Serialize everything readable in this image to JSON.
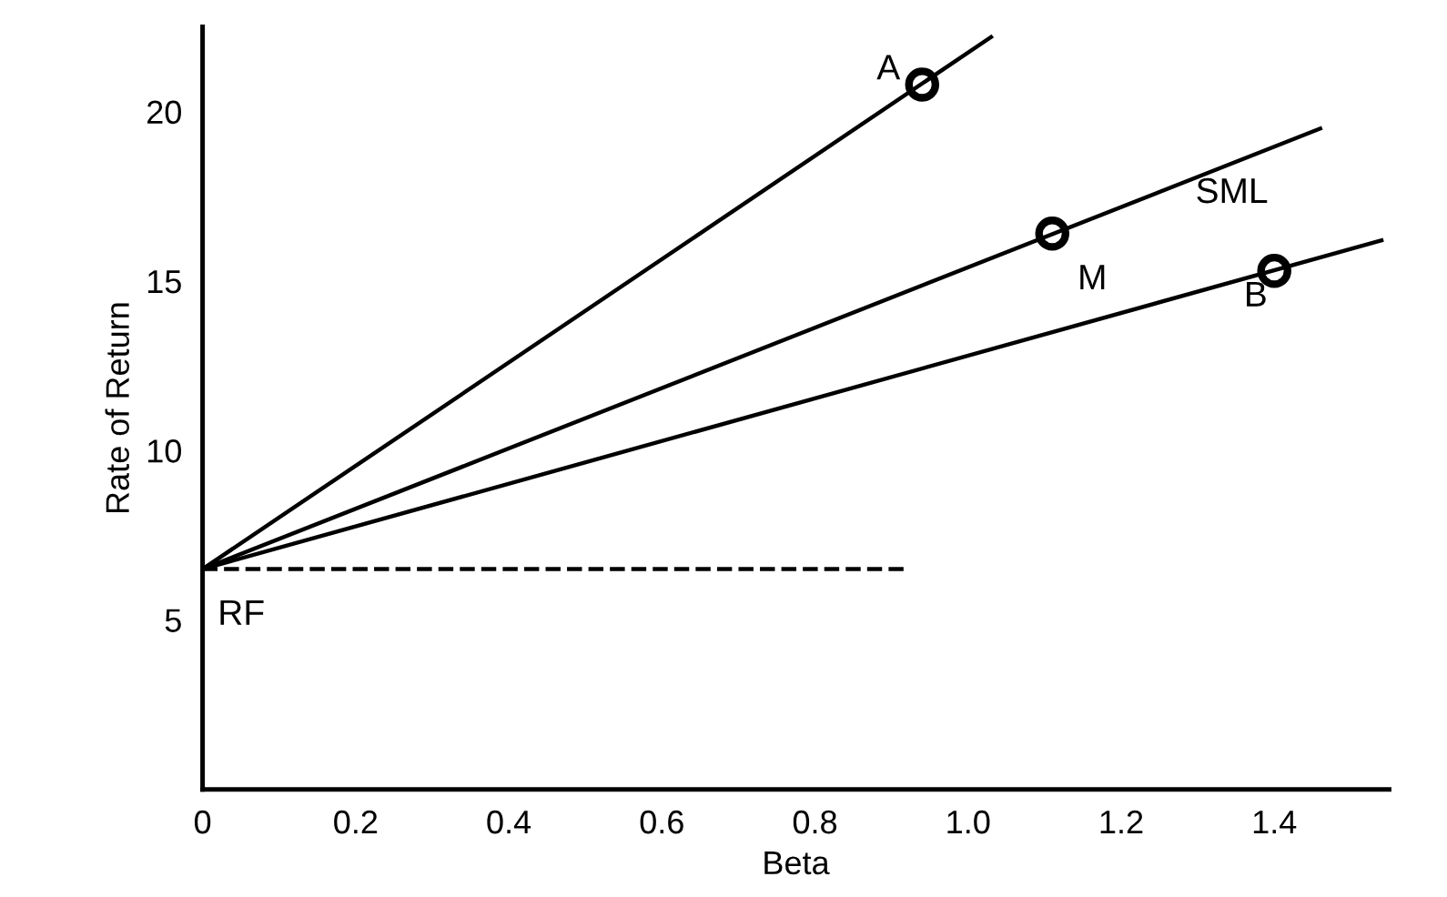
{
  "chart_data": {
    "type": "line",
    "xlabel": "Beta",
    "ylabel": "Rate of Return",
    "xlim": [
      0,
      1.55
    ],
    "ylim": [
      0,
      22.5
    ],
    "xticks": [
      0,
      0.2,
      0.4,
      0.6,
      0.8,
      {
        "value": 1.0,
        "label": "1.0"
      },
      1.2,
      1.4
    ],
    "yticks": [
      5,
      10,
      15,
      20
    ],
    "grid": false,
    "series": [
      {
        "color": "#000000",
        "x": [
          0,
          1.03
        ],
        "values": [
          6.5,
          22.2
        ],
        "line_style": "solid",
        "marker": "none"
      },
      {
        "color": "#000000",
        "x": [
          0,
          1.46
        ],
        "values": [
          6.5,
          19.5
        ],
        "line_style": "solid",
        "marker": "none"
      },
      {
        "color": "#000000",
        "x": [
          0,
          1.54
        ],
        "values": [
          6.5,
          16.2
        ],
        "line_style": "solid",
        "marker": "none"
      },
      {
        "color": "#000000",
        "x": [
          0,
          0.92
        ],
        "values": [
          6.5,
          6.5
        ],
        "line_style": "dashed",
        "marker": "none"
      },
      {
        "type": "scatter",
        "color": "#000000",
        "x": [
          0.94,
          1.11,
          1.4
        ],
        "values": [
          20.8,
          16.4,
          15.3
        ],
        "marker": "circle"
      }
    ],
    "annotations": [
      {
        "text": "A",
        "x": 0.94,
        "y": 20.8
      },
      {
        "text": "M",
        "x": 1.11,
        "y": 16.4
      },
      {
        "text": "B",
        "x": 1.4,
        "y": 15.3
      },
      {
        "text": "SML",
        "x": 1.33,
        "y": 18.5
      },
      {
        "text": "RF",
        "x": 0,
        "y": 6.5
      }
    ]
  }
}
